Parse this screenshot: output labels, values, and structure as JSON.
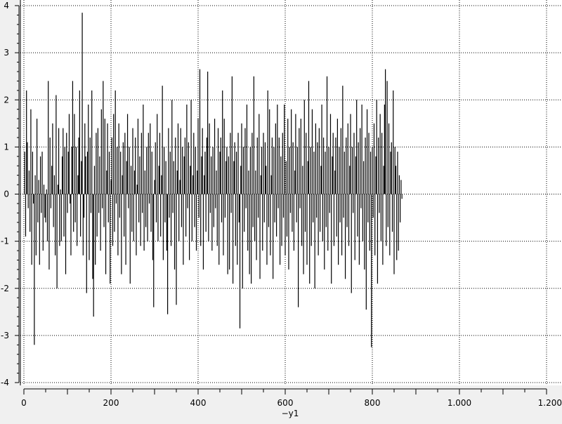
{
  "chart_data": {
    "type": "line",
    "style": "impulses",
    "title": "",
    "xlabel": "",
    "ylabel": "",
    "xlim": [
      0,
      1200
    ],
    "ylim": [
      -4,
      4
    ],
    "grid": true,
    "legend": {
      "position": "bottom",
      "entries": [
        "y1"
      ]
    },
    "legend_text": "−y1",
    "x_ticks": [
      "0",
      "200",
      "400",
      "600",
      "800",
      "1.000",
      "1.200"
    ],
    "x_tick_values": [
      0,
      200,
      400,
      600,
      800,
      1000,
      1200
    ],
    "y_ticks": [
      "-4",
      "-3",
      "-2",
      "-1",
      "0",
      "1",
      "2",
      "3",
      "4"
    ],
    "y_tick_values": [
      -4,
      -3,
      -2,
      -1,
      0,
      1,
      2,
      3,
      4
    ],
    "series": [
      {
        "name": "y1",
        "color": "#000000",
        "x_start": 2,
        "x_step": 2,
        "values": [
          0.9,
          -0.9,
          2.2,
          1.1,
          -0.3,
          0.5,
          -0.8,
          1.8,
          -1.5,
          0.9,
          -0.2,
          -3.2,
          0.4,
          -1.3,
          1.6,
          -0.6,
          0.3,
          -1.5,
          0.8,
          -0.4,
          0.9,
          -1.2,
          0.2,
          -0.5,
          -0.6,
          0.1,
          -1.0,
          2.4,
          -1.6,
          1.2,
          -0.3,
          0.6,
          1.5,
          -0.7,
          0.4,
          -1.3,
          2.1,
          -2.0,
          0.2,
          1.4,
          -1.1,
          0.1,
          -1.0,
          0.8,
          1.4,
          -0.9,
          1.0,
          -1.7,
          1.3,
          -0.4,
          0.9,
          1.7,
          -0.2,
          -1.3,
          1.0,
          2.4,
          -0.8,
          1.7,
          -0.6,
          1.0,
          -1.1,
          0.4,
          1.2,
          2.2,
          -0.9,
          0.7,
          3.85,
          -1.3,
          -0.5,
          1.5,
          0.8,
          -2.1,
          0.9,
          1.9,
          -1.4,
          1.2,
          -0.4,
          2.2,
          -1.8,
          -2.6,
          0.6,
          -1.5,
          1.3,
          -0.9,
          1.4,
          -0.4,
          0.8,
          -1.2,
          1.8,
          -0.3,
          2.4,
          -0.7,
          1.6,
          -1.7,
          0.5,
          1.5,
          -0.6,
          0.9,
          -1.9,
          0.3,
          1.2,
          -1.1,
          1.7,
          -0.8,
          2.2,
          -0.2,
          1.0,
          -1.3,
          1.5,
          -0.5,
          0.9,
          -1.7,
          0.4,
          1.1,
          -0.9,
          1.3,
          -1.5,
          0.7,
          1.7,
          -0.3,
          1.0,
          -1.9,
          0.6,
          -0.8,
          1.4,
          -1.0,
          0.5,
          1.2,
          -1.3,
          0.2,
          1.6,
          -0.6,
          0.8,
          -1.1,
          1.3,
          -0.4,
          1.9,
          -1.2,
          0.5,
          -0.7,
          1.0,
          -1.0,
          1.3,
          -0.2,
          1.5,
          -0.8,
          0.9,
          -1.4,
          -2.4,
          0.3,
          1.1,
          -0.6,
          1.7,
          -1.0,
          0.6,
          1.3,
          -0.9,
          0.4,
          2.3,
          -1.4,
          1.0,
          -0.6,
          0.7,
          -1.2,
          -2.55,
          1.4,
          -0.5,
          0.9,
          -1.1,
          2.0,
          -0.4,
          0.7,
          -1.6,
          1.2,
          -2.35,
          0.5,
          1.5,
          -1.0,
          0.3,
          1.4,
          -0.7,
          1.0,
          -1.5,
          0.8,
          1.2,
          -0.9,
          1.9,
          -0.3,
          1.1,
          -1.4,
          0.6,
          2.0,
          -1.0,
          0.4,
          1.3,
          -0.7,
          1.0,
          -1.2,
          0.5,
          1.6,
          -0.5,
          2.65,
          -1.1,
          0.8,
          1.4,
          -1.6,
          0.4,
          0.9,
          -0.8,
          1.2,
          2.6,
          -1.0,
          1.5,
          -0.4,
          0.8,
          -1.2,
          1.0,
          -0.7,
          1.6,
          -0.3,
          0.5,
          -1.1,
          1.4,
          -1.5,
          0.9,
          1.2,
          -0.6,
          2.2,
          -1.3,
          1.6,
          -0.5,
          0.7,
          1.0,
          -1.7,
          0.8,
          -1.6,
          1.3,
          -0.4,
          2.5,
          -1.9,
          0.7,
          1.1,
          -1.1,
          0.9,
          -1.5,
          1.3,
          -0.6,
          -2.85,
          0.6,
          1.5,
          -2.0,
          1.0,
          -0.8,
          1.4,
          -0.3,
          1.9,
          -1.2,
          0.5,
          -1.7,
          1.0,
          -1.9,
          1.3,
          -0.7,
          2.5,
          -1.0,
          0.5,
          -1.4,
          1.2,
          -0.5,
          1.7,
          -1.8,
          0.4,
          1.0,
          -1.2,
          1.3,
          -0.6,
          1.1,
          0.6,
          -1.5,
          2.2,
          -0.7,
          1.8,
          -1.3,
          0.4,
          1.2,
          -1.8,
          1.0,
          -0.6,
          1.5,
          -0.9,
          1.9,
          -0.3,
          1.2,
          -1.5,
          0.8,
          -1.1,
          1.3,
          -0.5,
          1.9,
          -1.3,
          0.7,
          -0.9,
          1.6,
          -1.6,
          1.0,
          -0.4,
          1.8,
          -0.8,
          1.1,
          -1.2,
          0.5,
          1.7,
          -0.6,
          1.0,
          -2.4,
          1.4,
          -0.3,
          1.6,
          -1.1,
          0.6,
          -1.7,
          2.0,
          -0.8,
          1.3,
          -1.5,
          0.7,
          2.4,
          -1.9,
          1.0,
          -1.1,
          1.8,
          -0.6,
          0.9,
          -2.0,
          1.5,
          -0.5,
          1.1,
          -1.3,
          1.4,
          -0.8,
          0.6,
          1.9,
          -1.0,
          1.2,
          -1.6,
          0.9,
          -0.7,
          2.5,
          -1.2,
          1.0,
          -0.4,
          1.7,
          -1.9,
          0.8,
          1.3,
          -1.1,
          0.5,
          1.2,
          -0.9,
          1.6,
          -1.5,
          1.0,
          -0.6,
          1.4,
          -1.3,
          2.3,
          -0.5,
          0.9,
          -1.8,
          1.2,
          -0.7,
          1.5,
          -1.1,
          0.6,
          1.7,
          -2.1,
          1.0,
          -0.4,
          1.3,
          -1.4,
          0.8,
          2.0,
          -0.9,
          1.1,
          -1.5,
          1.4,
          -0.3,
          1.9,
          -1.0,
          0.7,
          -1.6,
          1.2,
          -2.45,
          1.8,
          -0.6,
          1.3,
          -1.2,
          0.9,
          -3.25,
          1.0,
          -0.5,
          1.5,
          -1.3,
          0.8,
          2.0,
          -1.9,
          1.2,
          -0.4,
          1.7,
          -1.0,
          1.3,
          -1.5,
          0.6,
          1.9,
          2.65,
          -1.1,
          2.4,
          -0.7,
          1.5,
          -1.3,
          0.9,
          1.1,
          -0.8,
          2.2,
          -1.7,
          1.0,
          0.6,
          -1.4,
          0.9,
          -1.2,
          0.4,
          -0.6,
          0.3,
          -0.1
        ]
      }
    ]
  }
}
